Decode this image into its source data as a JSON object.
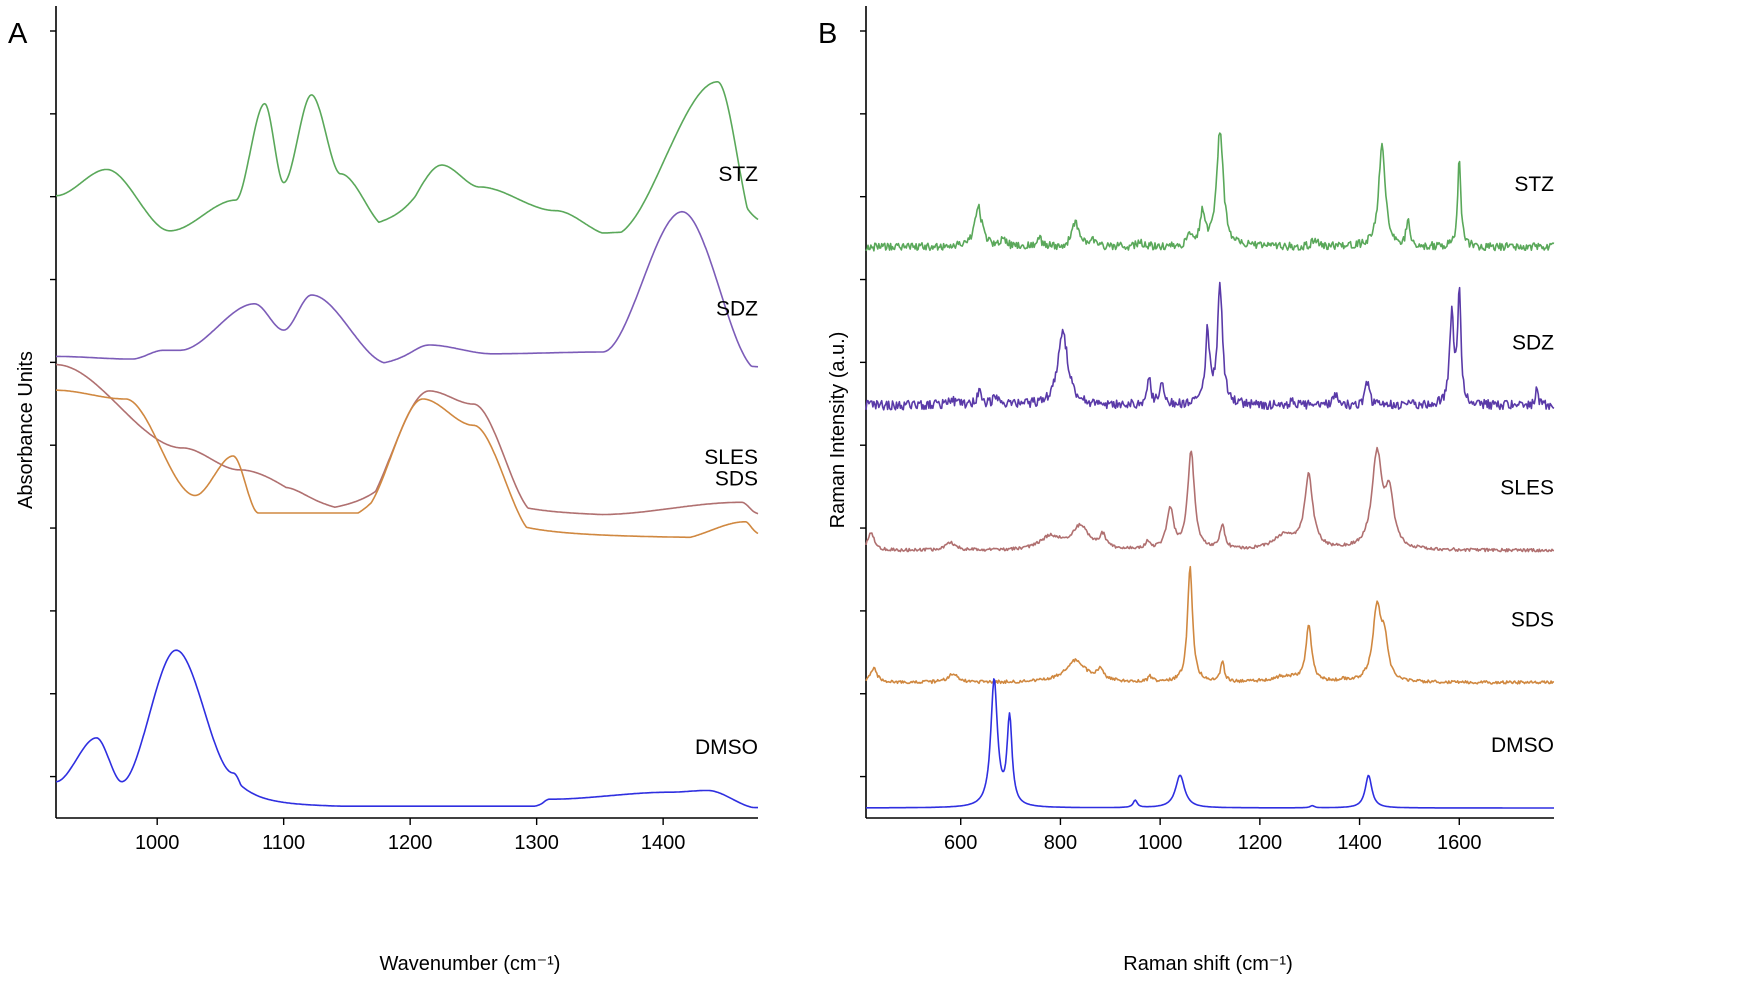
{
  "figure": {
    "background": "#ffffff"
  },
  "chart_data": [
    {
      "panel": "A",
      "type": "line",
      "xlabel": "Wavenumber (cm⁻¹)",
      "ylabel": "Absorbance Units",
      "xlim": [
        920,
        1475
      ],
      "xticks": [
        1000,
        1100,
        1200,
        1300,
        1400
      ],
      "y_tick_count": 10,
      "grid": false,
      "series": [
        {
          "name": "STZ",
          "color": "#5aa85a",
          "offset": 4.05,
          "peaks": [
            [
              960,
              0.3,
              14
            ],
            [
              1010,
              0.05,
              6
            ],
            [
              1062,
              0.35,
              6
            ],
            [
              1085,
              1.45,
              8
            ],
            [
              1122,
              1.55,
              9
            ],
            [
              1145,
              0.6,
              7
            ],
            [
              1183,
              0.07,
              5
            ],
            [
              1225,
              0.78,
              24
            ],
            [
              1255,
              0.4,
              18
            ],
            [
              1300,
              0.05,
              5
            ],
            [
              1315,
              0.28,
              4
            ],
            [
              1443,
              1.7,
              11
            ]
          ],
          "baseline": [
            0.45,
            0.0,
            0.0
          ],
          "points": [
            [
              920,
              0.45
            ],
            [
              960,
              0.75
            ],
            [
              1010,
              0.05
            ],
            [
              1062,
              0.4
            ],
            [
              1085,
              1.5
            ],
            [
              1100,
              0.6
            ],
            [
              1122,
              1.6
            ],
            [
              1145,
              0.7
            ],
            [
              1183,
              0.08
            ],
            [
              1225,
              0.8
            ],
            [
              1255,
              0.55
            ],
            [
              1315,
              0.28
            ],
            [
              1360,
              0.0
            ],
            [
              1443,
              1.75
            ],
            [
              1475,
              0.0
            ]
          ]
        },
        {
          "name": "SDZ",
          "color": "#7c5cb8",
          "offset": 3.1,
          "peaks": [
            [
              980,
              0.12,
              4
            ],
            [
              1005,
              0.22,
              4
            ],
            [
              1018,
              0.22,
              4
            ],
            [
              1077,
              0.75,
              8
            ],
            [
              1100,
              0.45,
              8
            ],
            [
              1122,
              0.85,
              7
            ],
            [
              1183,
              0.07,
              4
            ],
            [
              1215,
              0.28,
              22
            ],
            [
              1265,
              0.18,
              4
            ],
            [
              1300,
              0.05,
              4
            ],
            [
              1352,
              0.2,
              7
            ],
            [
              1415,
              1.8,
              8
            ],
            [
              1460,
              0.02,
              5
            ]
          ],
          "baseline": [
            0.15,
            0.0,
            0.0
          ],
          "points": [
            [
              920,
              0.15
            ],
            [
              980,
              0.12
            ],
            [
              1005,
              0.22
            ],
            [
              1018,
              0.22
            ],
            [
              1077,
              0.75
            ],
            [
              1100,
              0.45
            ],
            [
              1122,
              0.85
            ],
            [
              1183,
              0.07
            ],
            [
              1215,
              0.28
            ],
            [
              1265,
              0.18
            ],
            [
              1352,
              0.2
            ],
            [
              1415,
              1.8
            ],
            [
              1475,
              0.0
            ]
          ]
        },
        {
          "name": "SLES",
          "color": "#b07070",
          "offset": 2.05,
          "peaks": [
            [
              1020,
              0.65,
              10
            ],
            [
              1065,
              0.35,
              9
            ],
            [
              1100,
              0.35,
              30
            ],
            [
              1215,
              1.0,
              28
            ],
            [
              1250,
              0.55,
              20
            ],
            [
              1350,
              0.04,
              6
            ],
            [
              1380,
              0.02,
              6
            ],
            [
              1462,
              0.18,
              8
            ]
          ],
          "baseline": [
            1.75,
            0.0,
            0.0
          ],
          "points": [
            [
              920,
              1.75
            ],
            [
              1020,
              0.8
            ],
            [
              1065,
              0.55
            ],
            [
              1155,
              0.0
            ],
            [
              1215,
              1.45
            ],
            [
              1250,
              1.3
            ],
            [
              1300,
              0.05
            ],
            [
              1350,
              0.04
            ],
            [
              1462,
              0.18
            ],
            [
              1475,
              0.05
            ]
          ]
        },
        {
          "name": "SDS",
          "color": "#d08840",
          "offset": 1.9,
          "peaks": [
            [
              935,
              0.3,
              12
            ],
            [
              975,
              0.55,
              25
            ],
            [
              1060,
              0.55,
              7
            ],
            [
              1210,
              1.3,
              28
            ],
            [
              1250,
              0.65,
              20
            ],
            [
              1380,
              0.03,
              5
            ],
            [
              1465,
              0.2,
              7
            ]
          ],
          "baseline": [
            0.0,
            0.0,
            0.0
          ],
          "points": [
            [
              920,
              1.7
            ],
            [
              975,
              1.6
            ],
            [
              1030,
              0.5
            ],
            [
              1060,
              0.95
            ],
            [
              1080,
              0.3
            ],
            [
              1160,
              0.3
            ],
            [
              1210,
              1.6
            ],
            [
              1250,
              1.3
            ],
            [
              1300,
              0.05
            ],
            [
              1410,
              0.0
            ],
            [
              1465,
              0.2
            ],
            [
              1475,
              0.05
            ]
          ]
        },
        {
          "name": "DMSO",
          "color": "#2f2fe0",
          "offset": 0.0,
          "peaks": [
            [
              935,
              0.12,
              6
            ],
            [
              952,
              0.75,
              8
            ],
            [
              1015,
              1.7,
              14
            ],
            [
              1045,
              0.55,
              20
            ],
            [
              1310,
              0.1,
              6
            ],
            [
              1405,
              0.18,
              8
            ],
            [
              1435,
              0.2,
              6
            ]
          ],
          "baseline": [
            0.0,
            0.0,
            0.0
          ],
          "points": [
            [
              920,
              0.3
            ],
            [
              952,
              0.8
            ],
            [
              972,
              0.3
            ],
            [
              1015,
              1.8
            ],
            [
              1060,
              0.4
            ],
            [
              1075,
              0.02
            ],
            [
              1300,
              0.02
            ],
            [
              1310,
              0.1
            ],
            [
              1405,
              0.18
            ],
            [
              1435,
              0.2
            ],
            [
              1475,
              0.0
            ]
          ]
        }
      ]
    },
    {
      "panel": "B",
      "type": "line",
      "xlabel": "Raman shift (cm⁻¹)",
      "ylabel": "Raman Intensity (a.u.)",
      "xlim": [
        410,
        1790
      ],
      "xticks": [
        600,
        800,
        1000,
        1200,
        1400,
        1600
      ],
      "y_tick_count": 10,
      "grid": false,
      "series": [
        {
          "name": "STZ",
          "color": "#5aa85a",
          "offset": 4.25,
          "peaks": [
            [
              635,
              0.55,
              9
            ],
            [
              685,
              0.12,
              6
            ],
            [
              757,
              0.15,
              5
            ],
            [
              830,
              0.35,
              8
            ],
            [
              865,
              0.12,
              4
            ],
            [
              960,
              0.08,
              6
            ],
            [
              1060,
              0.15,
              5
            ],
            [
              1085,
              0.45,
              6
            ],
            [
              1120,
              1.6,
              8
            ],
            [
              1310,
              0.12,
              5
            ],
            [
              1445,
              1.4,
              8
            ],
            [
              1497,
              0.35,
              4
            ],
            [
              1600,
              1.2,
              4
            ]
          ],
          "noise": 0.03
        },
        {
          "name": "SDZ",
          "color": "#5a3aa8",
          "offset": 3.05,
          "peaks": [
            [
              580,
              0.08,
              10
            ],
            [
              637,
              0.2,
              5
            ],
            [
              670,
              0.12,
              7
            ],
            [
              805,
              1.0,
              12
            ],
            [
              978,
              0.4,
              4
            ],
            [
              1003,
              0.3,
              5
            ],
            [
              1095,
              1.0,
              5
            ],
            [
              1120,
              1.65,
              6
            ],
            [
              1265,
              0.07,
              4
            ],
            [
              1352,
              0.15,
              5
            ],
            [
              1415,
              0.32,
              5
            ],
            [
              1500,
              0.06,
              4
            ],
            [
              1585,
              1.2,
              5
            ],
            [
              1600,
              1.55,
              4
            ],
            [
              1755,
              0.2,
              3
            ]
          ],
          "noise": 0.035
        },
        {
          "name": "SLES",
          "color": "#b07070",
          "offset": 1.95,
          "peaks": [
            [
              420,
              0.25,
              8
            ],
            [
              580,
              0.1,
              12
            ],
            [
              780,
              0.18,
              25
            ],
            [
              840,
              0.32,
              20
            ],
            [
              885,
              0.18,
              8
            ],
            [
              975,
              0.1,
              5
            ],
            [
              1020,
              0.55,
              8
            ],
            [
              1062,
              1.35,
              8
            ],
            [
              1125,
              0.32,
              6
            ],
            [
              1250,
              0.2,
              25
            ],
            [
              1298,
              1.0,
              10
            ],
            [
              1435,
              1.3,
              12
            ],
            [
              1460,
              0.7,
              10
            ]
          ],
          "noise": 0.012
        },
        {
          "name": "SDS",
          "color": "#d08840",
          "offset": 0.95,
          "peaks": [
            [
              425,
              0.2,
              8
            ],
            [
              585,
              0.12,
              12
            ],
            [
              830,
              0.3,
              25
            ],
            [
              880,
              0.15,
              8
            ],
            [
              980,
              0.07,
              5
            ],
            [
              1060,
              1.6,
              6
            ],
            [
              1125,
              0.3,
              4
            ],
            [
              1250,
              0.08,
              30
            ],
            [
              1298,
              0.75,
              7
            ],
            [
              1365,
              0.03,
              5
            ],
            [
              1435,
              1.0,
              10
            ],
            [
              1450,
              0.5,
              8
            ]
          ],
          "noise": 0.012
        },
        {
          "name": "DMSO",
          "color": "#2f2fe0",
          "offset": 0.0,
          "peaks": [
            [
              667,
              1.75,
              8
            ],
            [
              698,
              1.2,
              6
            ],
            [
              950,
              0.1,
              5
            ],
            [
              1040,
              0.45,
              11
            ],
            [
              1305,
              0.03,
              5
            ],
            [
              1418,
              0.45,
              8
            ]
          ],
          "noise": 0.0
        }
      ]
    }
  ]
}
